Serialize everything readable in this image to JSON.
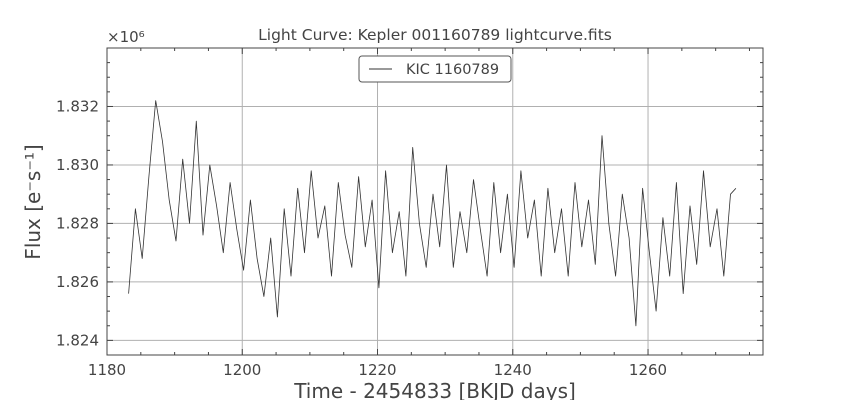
{
  "chart_data": {
    "type": "line",
    "title": "Light Curve: Kepler 001160789 lightcurve.fits",
    "xlabel": "Time - 2454833 [BKJD days]",
    "ylabel": "Flux [e⁻s⁻¹]",
    "y_multiplier_label": "×10⁶",
    "xlim": [
      1180,
      1277
    ],
    "ylim": [
      1.8235,
      1.834
    ],
    "x_ticks": [
      1180,
      1200,
      1220,
      1240,
      1260
    ],
    "y_ticks": [
      1.824,
      1.826,
      1.828,
      1.83,
      1.832
    ],
    "x_tick_labels": [
      "1180",
      "1200",
      "1220",
      "1240",
      "1260"
    ],
    "y_tick_labels": [
      "1.824",
      "1.826",
      "1.828",
      "1.830",
      "1.832"
    ],
    "grid": true,
    "legend_position": "top-center",
    "line_color": "#333333",
    "series": [
      {
        "name": "KIC 1160789",
        "x": [
          1183.2,
          1184.2,
          1185.2,
          1186.2,
          1187.2,
          1188.2,
          1189.2,
          1190.2,
          1191.2,
          1192.2,
          1193.2,
          1194.2,
          1195.2,
          1196.2,
          1197.2,
          1198.2,
          1199.2,
          1200.2,
          1201.2,
          1202.2,
          1203.2,
          1204.2,
          1205.2,
          1206.2,
          1207.2,
          1208.2,
          1209.2,
          1210.2,
          1211.2,
          1212.2,
          1213.2,
          1214.2,
          1215.2,
          1216.2,
          1217.2,
          1218.2,
          1219.2,
          1220.2,
          1221.2,
          1222.2,
          1223.2,
          1224.2,
          1225.2,
          1226.2,
          1227.2,
          1228.2,
          1229.2,
          1230.2,
          1231.2,
          1232.2,
          1233.2,
          1234.2,
          1235.2,
          1236.2,
          1237.2,
          1238.2,
          1239.2,
          1240.2,
          1241.2,
          1242.2,
          1243.2,
          1244.2,
          1245.2,
          1246.2,
          1247.2,
          1248.2,
          1249.2,
          1250.2,
          1251.2,
          1252.2,
          1253.2,
          1254.2,
          1255.2,
          1256.2,
          1257.2,
          1258.2,
          1259.2,
          1260.2,
          1261.2,
          1262.2,
          1263.2,
          1264.2,
          1265.2,
          1266.2,
          1267.2,
          1268.2,
          1269.2,
          1270.2,
          1271.2,
          1272.2,
          1273.0
        ],
        "y": [
          1.8256,
          1.8285,
          1.8268,
          1.8296,
          1.8322,
          1.8308,
          1.8288,
          1.8274,
          1.8302,
          1.828,
          1.8315,
          1.8276,
          1.83,
          1.8286,
          1.827,
          1.8294,
          1.8278,
          1.8264,
          1.8288,
          1.8268,
          1.8255,
          1.8275,
          1.8248,
          1.8285,
          1.8262,
          1.8292,
          1.827,
          1.8298,
          1.8275,
          1.8286,
          1.8262,
          1.8294,
          1.8276,
          1.8265,
          1.8296,
          1.8272,
          1.8288,
          1.8258,
          1.8298,
          1.827,
          1.8284,
          1.8262,
          1.8306,
          1.828,
          1.8265,
          1.829,
          1.8272,
          1.83,
          1.8265,
          1.8284,
          1.827,
          1.8295,
          1.8278,
          1.8262,
          1.8294,
          1.827,
          1.829,
          1.8265,
          1.8298,
          1.8275,
          1.8288,
          1.8262,
          1.8292,
          1.827,
          1.8285,
          1.8262,
          1.8294,
          1.8272,
          1.8288,
          1.8266,
          1.831,
          1.828,
          1.8262,
          1.829,
          1.8275,
          1.8245,
          1.8292,
          1.827,
          1.825,
          1.8282,
          1.8262,
          1.8294,
          1.8256,
          1.8286,
          1.8266,
          1.8298,
          1.8272,
          1.8285,
          1.8262,
          1.829,
          1.8292
        ]
      }
    ]
  }
}
